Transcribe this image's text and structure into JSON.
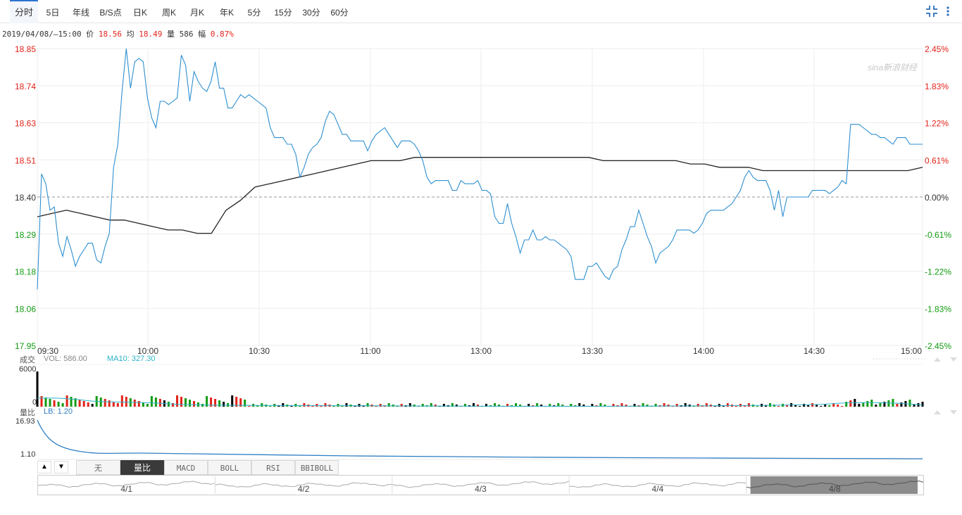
{
  "tabs": [
    "分时",
    "5日",
    "年线",
    "B/S点",
    "日K",
    "周K",
    "月K",
    "年K",
    "5分",
    "15分",
    "30分",
    "60分"
  ],
  "active_tab": "分时",
  "info": {
    "datetime": "2019/04/08/—15:00",
    "price_label": "价",
    "price": "18.56",
    "avg_label": "均",
    "avg": "18.49",
    "vol_label": "量",
    "vol": "586",
    "amp_label": "幅",
    "amp": "0.87%"
  },
  "watermark": "sina新浪财经",
  "volume_panel": {
    "title": "成交",
    "vol_text": "VOL: 586.00",
    "ma_text": "MA10: 327.30",
    "ytick_top": "6000",
    "ytick_zero": "0"
  },
  "ratio_panel": {
    "title": "量比",
    "lb_text": "LB: 1.20",
    "ytick_top": "16.93",
    "ytick_bottom": "1.10"
  },
  "indicators": [
    "无",
    "量比",
    "MACD",
    "BOLL",
    "RSI",
    "BBIBOLL"
  ],
  "selected_indicator": "量比",
  "navigator_days": [
    "4/1",
    "4/2",
    "4/3",
    "4/4",
    "4/8"
  ],
  "colors": {
    "price_line": "#2e8fd0",
    "avg_line": "#222222",
    "up": "#e2231a",
    "down": "#129b12",
    "ratio_line": "#2e7fc4",
    "ma_line": "#2bb3c8"
  },
  "chart_data": {
    "type": "line",
    "x_ticks": [
      "09:30",
      "10:00",
      "10:30",
      "11:00",
      "13:00",
      "13:30",
      "14:00",
      "14:30",
      "15:00"
    ],
    "y_left_ticks": [
      "18.85",
      "18.74",
      "18.63",
      "18.51",
      "18.40",
      "18.29",
      "18.18",
      "18.06",
      "17.95"
    ],
    "y_right_ticks": [
      "2.45%",
      "1.83%",
      "1.22%",
      "0.61%",
      "0.00%",
      "-0.61%",
      "-1.22%",
      "-1.83%",
      "-2.45%"
    ],
    "ylim": [
      17.95,
      18.85
    ],
    "prev_close": 18.4,
    "series": [
      {
        "kind": "price",
        "values": [
          18.12,
          18.47,
          18.44,
          18.36,
          18.37,
          18.26,
          18.22,
          18.28,
          18.24,
          18.19,
          18.22,
          18.24,
          18.26,
          18.26,
          18.21,
          18.2,
          18.25,
          18.29,
          18.49,
          18.56,
          18.72,
          18.85,
          18.73,
          18.81,
          18.82,
          18.81,
          18.7,
          18.64,
          18.61,
          18.69,
          18.69,
          18.68,
          18.69,
          18.7,
          18.83,
          18.8,
          18.69,
          18.78,
          18.75,
          18.73,
          18.72,
          18.75,
          18.81,
          18.73,
          18.73,
          18.67,
          18.67,
          18.69,
          18.71,
          18.7,
          18.71,
          18.7,
          18.69,
          18.68,
          18.67,
          18.61,
          18.58,
          18.58,
          18.58,
          18.56,
          18.56,
          18.53,
          18.46,
          18.49,
          18.53,
          18.55,
          18.56,
          18.58,
          18.63,
          18.66,
          18.65,
          18.62,
          18.59,
          18.59,
          18.57,
          18.57,
          18.57,
          18.57,
          18.54,
          18.57,
          18.59,
          18.6,
          18.61,
          18.59,
          18.57,
          18.55,
          18.57,
          18.57,
          18.57,
          18.56,
          18.54,
          18.51,
          18.46,
          18.44,
          18.45,
          18.45,
          18.45,
          18.45,
          18.42,
          18.42,
          18.45,
          18.44,
          18.44,
          18.44,
          18.45,
          18.42,
          18.42,
          18.41,
          18.34,
          18.32,
          18.32,
          18.38,
          18.32,
          18.28,
          18.23,
          18.27,
          18.27,
          18.3,
          18.27,
          18.27,
          18.28,
          18.27,
          18.27,
          18.26,
          18.25,
          18.24,
          18.22,
          18.15,
          18.15,
          18.15,
          18.19,
          18.19,
          18.2,
          18.18,
          18.16,
          18.15,
          18.18,
          18.19,
          18.24,
          18.27,
          18.31,
          18.31,
          18.36,
          18.32,
          18.28,
          18.25,
          18.2,
          18.23,
          18.24,
          18.25,
          18.27,
          18.3,
          18.3,
          18.3,
          18.3,
          18.29,
          18.3,
          18.32,
          18.35,
          18.36,
          18.36,
          18.36,
          18.36,
          18.37,
          18.38,
          18.4,
          18.42,
          18.46,
          18.48,
          18.46,
          18.45,
          18.45,
          18.45,
          18.42,
          18.36,
          18.42,
          18.34,
          18.4,
          18.4,
          18.4,
          18.4,
          18.4,
          18.4,
          18.42,
          18.42,
          18.42,
          18.42,
          18.41,
          18.42,
          18.43,
          18.45,
          18.44,
          18.62,
          18.62,
          18.62,
          18.61,
          18.6,
          18.59,
          18.59,
          18.58,
          18.58,
          18.57,
          18.56,
          18.58,
          18.58,
          18.58,
          18.56,
          18.56,
          18.56,
          18.56
        ]
      },
      {
        "kind": "average",
        "values": [
          18.34,
          18.35,
          18.36,
          18.35,
          18.34,
          18.33,
          18.33,
          18.32,
          18.31,
          18.3,
          18.3,
          18.29,
          18.29,
          18.36,
          18.39,
          18.43,
          18.44,
          18.45,
          18.46,
          18.47,
          18.48,
          18.49,
          18.5,
          18.51,
          18.51,
          18.51,
          18.52,
          18.52,
          18.52,
          18.52,
          18.52,
          18.52,
          18.52,
          18.52,
          18.52,
          18.52,
          18.52,
          18.52,
          18.52,
          18.51,
          18.51,
          18.51,
          18.51,
          18.51,
          18.51,
          18.5,
          18.5,
          18.49,
          18.49,
          18.49,
          18.48,
          18.48,
          18.48,
          18.48,
          18.48,
          18.48,
          18.48,
          18.48,
          18.48,
          18.48,
          18.48,
          18.49
        ]
      }
    ]
  }
}
